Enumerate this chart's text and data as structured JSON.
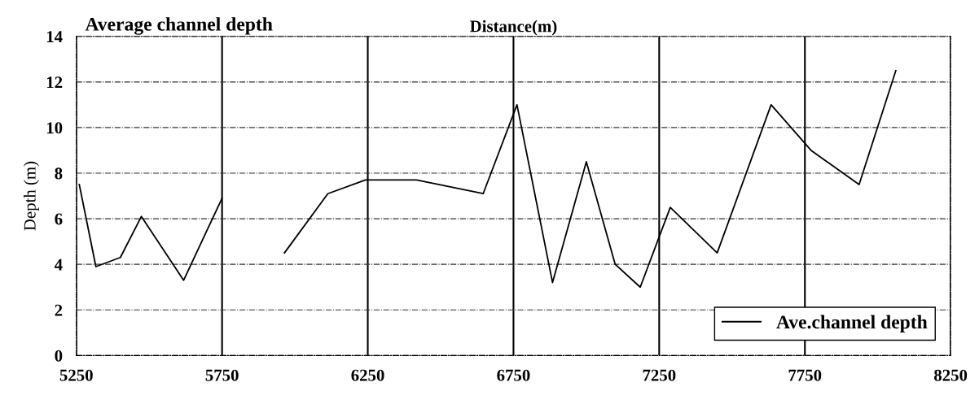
{
  "chart_data": {
    "type": "line",
    "title": "Average channel depth",
    "xlabel": "Distance(m)",
    "ylabel": "Depth (m)",
    "x": [
      5260,
      5317,
      5401,
      5473,
      5618,
      5750,
      5860,
      5964,
      6113,
      6242,
      6417,
      6646,
      6762,
      6884,
      7000,
      7099,
      7185,
      7288,
      7449,
      7634,
      7771,
      7936,
      8062
    ],
    "series": [
      {
        "name": "Ave.channel depth",
        "color": "#000000",
        "values": [
          7.5,
          3.9,
          4.3,
          6.1,
          3.3,
          6.9,
          null,
          4.5,
          7.1,
          7.7,
          7.7,
          7.1,
          11.0,
          3.2,
          8.5,
          4.0,
          3.0,
          6.5,
          4.5,
          11.0,
          9.0,
          7.5,
          12.5
        ]
      }
    ],
    "xlim": [
      5250,
      8250
    ],
    "xticks": [
      5250,
      5750,
      6250,
      6750,
      7250,
      7750,
      8250
    ],
    "ylim": [
      0,
      14
    ],
    "yticks": [
      0,
      2,
      4,
      6,
      8,
      10,
      12,
      14
    ],
    "grid": true,
    "legend": "lower right",
    "marker": "none",
    "line_style": "solid"
  }
}
